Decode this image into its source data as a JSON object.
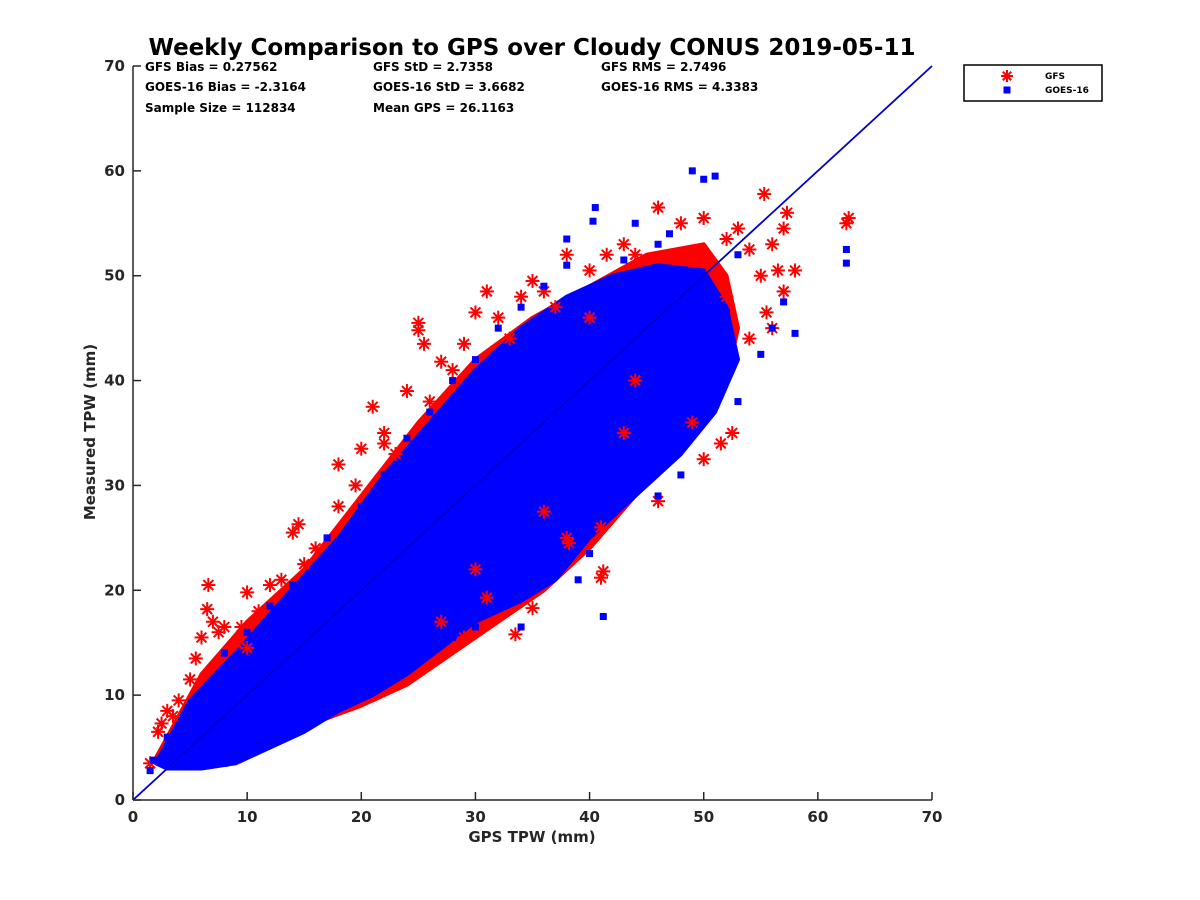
{
  "chart_data": {
    "type": "scatter",
    "title": "Weekly Comparison to GPS over Cloudy CONUS 2019-05-11",
    "xlabel": "GPS TPW (mm)",
    "ylabel": "Measured TPW (mm)",
    "xlim": [
      0,
      70
    ],
    "ylim": [
      0,
      70
    ],
    "xticks": [
      "0",
      "10",
      "20",
      "30",
      "40",
      "50",
      "60",
      "70"
    ],
    "yticks": [
      "0",
      "10",
      "20",
      "30",
      "40",
      "50",
      "60",
      "70"
    ],
    "grid": false,
    "legend_position": "top-right outside",
    "annotations": [
      "GFS Bias = 0.27562",
      "GFS StD = 2.7358",
      "GFS RMS = 2.7496",
      "GOES-16 Bias = -2.3164",
      "GOES-16 StD = 3.6682",
      "GOES-16 RMS = 4.3383",
      "Sample Size = 112834",
      "Mean GPS = 26.1163"
    ],
    "reference_line": {
      "x": [
        0,
        70
      ],
      "y": [
        0,
        70
      ],
      "color": "#0000cc"
    },
    "series": [
      {
        "name": "GFS",
        "marker": "asterisk",
        "color": "#ff0000",
        "points": [
          [
            1.5,
            3.5
          ],
          [
            2.2,
            6.5
          ],
          [
            2.5,
            7.3
          ],
          [
            3.0,
            8.5
          ],
          [
            4.0,
            9.5
          ],
          [
            5.0,
            11.5
          ],
          [
            5.5,
            13.5
          ],
          [
            6.0,
            15.5
          ],
          [
            6.5,
            18.2
          ],
          [
            6.6,
            20.5
          ],
          [
            7.0,
            17.0
          ],
          [
            7.5,
            16.0
          ],
          [
            8.0,
            16.5
          ],
          [
            9.0,
            15.0
          ],
          [
            9.5,
            16.5
          ],
          [
            10.0,
            19.8
          ],
          [
            11.0,
            18.0
          ],
          [
            12.0,
            20.5
          ],
          [
            13.0,
            21.0
          ],
          [
            14.0,
            25.5
          ],
          [
            14.5,
            26.3
          ],
          [
            16.0,
            24.0
          ],
          [
            18.0,
            28.0
          ],
          [
            18.0,
            32.0
          ],
          [
            19.5,
            30.0
          ],
          [
            21.0,
            37.5
          ],
          [
            22.0,
            35.0
          ],
          [
            23.0,
            33.0
          ],
          [
            24.0,
            39.0
          ],
          [
            25.0,
            45.5
          ],
          [
            25.0,
            44.8
          ],
          [
            25.5,
            43.5
          ],
          [
            26.0,
            38.0
          ],
          [
            27.0,
            41.8
          ],
          [
            28.0,
            41.0
          ],
          [
            29.0,
            43.5
          ],
          [
            30.0,
            46.5
          ],
          [
            31.0,
            48.5
          ],
          [
            32.0,
            46.0
          ],
          [
            33.0,
            44.0
          ],
          [
            34.0,
            48.0
          ],
          [
            35.0,
            49.5
          ],
          [
            36.0,
            48.5
          ],
          [
            37.0,
            47.0
          ],
          [
            38.0,
            52.0
          ],
          [
            40.0,
            50.5
          ],
          [
            41.5,
            52.0
          ],
          [
            43.0,
            53.0
          ],
          [
            44.0,
            52.0
          ],
          [
            46.0,
            56.5
          ],
          [
            48.0,
            55.0
          ],
          [
            50.0,
            55.5
          ],
          [
            52.0,
            53.5
          ],
          [
            53.0,
            54.5
          ],
          [
            54.0,
            52.5
          ],
          [
            55.0,
            50.0
          ],
          [
            55.3,
            57.8
          ],
          [
            56.0,
            53.0
          ],
          [
            56.5,
            50.5
          ],
          [
            57.0,
            48.5
          ],
          [
            57.3,
            56.0
          ],
          [
            57.0,
            54.5
          ],
          [
            58.0,
            50.5
          ],
          [
            62.5,
            55.0
          ],
          [
            62.7,
            55.5
          ],
          [
            56.0,
            45.0
          ],
          [
            54.0,
            44.0
          ],
          [
            52.0,
            48.0
          ],
          [
            55.5,
            46.5
          ],
          [
            50.0,
            32.5
          ],
          [
            51.5,
            34.0
          ],
          [
            52.5,
            35.0
          ],
          [
            49.0,
            36.0
          ],
          [
            43.0,
            35.0
          ],
          [
            46.0,
            28.5
          ],
          [
            41.0,
            26.0
          ],
          [
            41.2,
            21.8
          ],
          [
            41.0,
            21.2
          ],
          [
            38.0,
            25.0
          ],
          [
            38.2,
            24.5
          ],
          [
            35.0,
            18.3
          ],
          [
            33.5,
            15.8
          ],
          [
            31.0,
            19.3
          ],
          [
            29.0,
            15.5
          ],
          [
            27.0,
            17.0
          ],
          [
            30.0,
            22.0
          ],
          [
            36.0,
            27.5
          ],
          [
            44.0,
            40.0
          ],
          [
            40.0,
            46.0
          ],
          [
            22.0,
            34.0
          ],
          [
            20.0,
            33.5
          ],
          [
            15.0,
            22.5
          ],
          [
            10.0,
            14.5
          ],
          [
            3.5,
            8.0
          ]
        ]
      },
      {
        "name": "GOES-16",
        "marker": "square",
        "color": "#0000ff",
        "points": [
          [
            1.5,
            2.8
          ],
          [
            1.8,
            3.8
          ],
          [
            3.0,
            6.0
          ],
          [
            4.0,
            5.5
          ],
          [
            5.5,
            7.0
          ],
          [
            7.0,
            9.0
          ],
          [
            8.0,
            8.5
          ],
          [
            10.0,
            10.5
          ],
          [
            12.0,
            12.5
          ],
          [
            14.0,
            14.0
          ],
          [
            16.0,
            16.5
          ],
          [
            18.0,
            18.0
          ],
          [
            20.0,
            20.5
          ],
          [
            22.0,
            22.0
          ],
          [
            24.0,
            24.5
          ],
          [
            26.0,
            25.5
          ],
          [
            28.0,
            27.5
          ],
          [
            30.0,
            29.0
          ],
          [
            32.0,
            31.0
          ],
          [
            34.0,
            32.5
          ],
          [
            36.0,
            34.0
          ],
          [
            38.0,
            36.0
          ],
          [
            40.0,
            37.5
          ],
          [
            42.0,
            39.0
          ],
          [
            44.0,
            41.0
          ],
          [
            46.0,
            42.5
          ],
          [
            48.0,
            44.0
          ],
          [
            50.0,
            45.5
          ],
          [
            52.0,
            46.5
          ],
          [
            49.0,
            60.0
          ],
          [
            50.0,
            59.2
          ],
          [
            51.0,
            59.5
          ],
          [
            40.5,
            56.5
          ],
          [
            40.3,
            55.2
          ],
          [
            44.0,
            55.0
          ],
          [
            46.0,
            53.0
          ],
          [
            38.0,
            53.5
          ],
          [
            62.5,
            52.5
          ],
          [
            62.5,
            51.2
          ],
          [
            57.0,
            47.5
          ],
          [
            58.0,
            44.5
          ],
          [
            55.0,
            42.5
          ],
          [
            53.0,
            38.0
          ],
          [
            56.0,
            45.0
          ],
          [
            34.0,
            16.5
          ],
          [
            41.2,
            17.5
          ],
          [
            39.0,
            21.0
          ],
          [
            40.0,
            23.5
          ],
          [
            43.0,
            30.0
          ],
          [
            46.0,
            29.0
          ],
          [
            48.0,
            31.0
          ],
          [
            47.0,
            33.5
          ],
          [
            30.0,
            16.5
          ],
          [
            28.0,
            15.5
          ],
          [
            26.0,
            14.5
          ],
          [
            23.0,
            12.0
          ],
          [
            19.0,
            11.5
          ],
          [
            15.0,
            9.0
          ],
          [
            12.0,
            5.5
          ],
          [
            10.0,
            4.5
          ],
          [
            8.0,
            3.5
          ],
          [
            6.0,
            3.2
          ],
          [
            8.0,
            14.0
          ],
          [
            10.0,
            16.0
          ],
          [
            12.0,
            18.5
          ],
          [
            14.0,
            20.5
          ],
          [
            17.0,
            25.0
          ],
          [
            20.0,
            28.0
          ],
          [
            22.0,
            31.0
          ],
          [
            24.0,
            34.5
          ],
          [
            26.0,
            37.0
          ],
          [
            28.0,
            40.0
          ],
          [
            30.0,
            42.0
          ],
          [
            32.0,
            45.0
          ],
          [
            34.0,
            47.0
          ],
          [
            36.0,
            49.0
          ],
          [
            38.0,
            51.0
          ],
          [
            43.0,
            51.5
          ],
          [
            47.0,
            54.0
          ],
          [
            53.0,
            52.0
          ]
        ]
      }
    ],
    "density_clouds": [
      {
        "series": "GFS",
        "color": "#ff0000",
        "polygon": [
          [
            2,
            4
          ],
          [
            6,
            12
          ],
          [
            10,
            17
          ],
          [
            15,
            22
          ],
          [
            20,
            29
          ],
          [
            25,
            36
          ],
          [
            30,
            42
          ],
          [
            35,
            46
          ],
          [
            40,
            49
          ],
          [
            45,
            52
          ],
          [
            50,
            53
          ],
          [
            52,
            50
          ],
          [
            53,
            45
          ],
          [
            52,
            40
          ],
          [
            48,
            33
          ],
          [
            44,
            29
          ],
          [
            40,
            24
          ],
          [
            36,
            20
          ],
          [
            32,
            17
          ],
          [
            28,
            14
          ],
          [
            24,
            11
          ],
          [
            20,
            9
          ],
          [
            15,
            7
          ],
          [
            10,
            5
          ],
          [
            6,
            3.5
          ],
          [
            3,
            3
          ]
        ]
      },
      {
        "series": "GOES-16",
        "color": "#0000ff",
        "polygon": [
          [
            2,
            3.5
          ],
          [
            5,
            9.5
          ],
          [
            9,
            14
          ],
          [
            13,
            19
          ],
          [
            18,
            25
          ],
          [
            22,
            31
          ],
          [
            26,
            36
          ],
          [
            30,
            41
          ],
          [
            34,
            45
          ],
          [
            38,
            48
          ],
          [
            42,
            50
          ],
          [
            46,
            51
          ],
          [
            50,
            50.5
          ],
          [
            52,
            47
          ],
          [
            53,
            42
          ],
          [
            51,
            37
          ],
          [
            48,
            33
          ],
          [
            44,
            29
          ],
          [
            40,
            25
          ],
          [
            37,
            21
          ],
          [
            34,
            19
          ],
          [
            30,
            17
          ],
          [
            27,
            14.5
          ],
          [
            24,
            12
          ],
          [
            21,
            10
          ],
          [
            18,
            8.5
          ],
          [
            15,
            6.5
          ],
          [
            12,
            5
          ],
          [
            9,
            3.5
          ],
          [
            6,
            3
          ],
          [
            3,
            3
          ]
        ]
      }
    ]
  }
}
